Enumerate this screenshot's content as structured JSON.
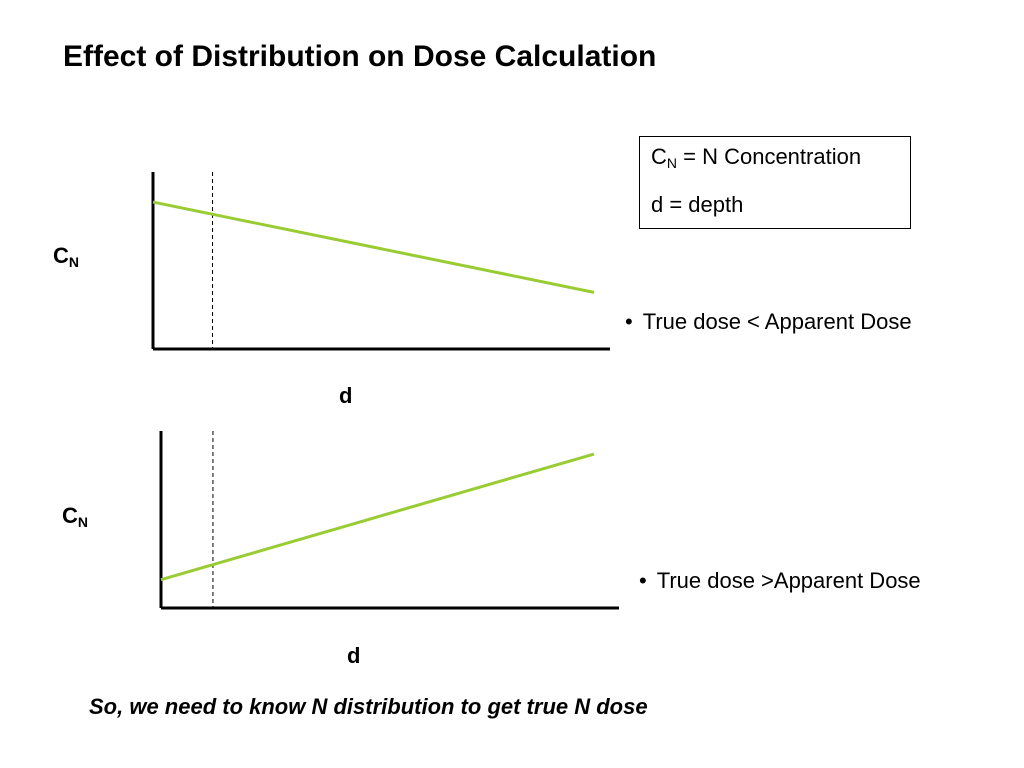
{
  "slide": {
    "title": "Effect of Distribution on Dose Calculation",
    "legend": {
      "cn_main": "C",
      "cn_sub": "N",
      "cn_rest": " = N Concentration",
      "d_line": "d = depth"
    },
    "conclusion": "So, we need to know N distribution to get true N dose"
  },
  "chart_data": [
    {
      "type": "line",
      "xlabel": "d",
      "ylabel_main": "C",
      "ylabel_sub": "N",
      "series": [
        {
          "x": [
            0,
            1
          ],
          "y": [
            0.83,
            0.32
          ]
        }
      ],
      "xlim": [
        0,
        1.04
      ],
      "ylim": [
        0,
        1
      ],
      "marker_x": 0.135,
      "line_color": "#99cc33",
      "bullet": "True dose < Apparent Dose"
    },
    {
      "type": "line",
      "xlabel": "d",
      "ylabel_main": "C",
      "ylabel_sub": "N",
      "series": [
        {
          "x": [
            0,
            1
          ],
          "y": [
            0.16,
            0.87
          ]
        }
      ],
      "xlim": [
        0,
        1.04
      ],
      "ylim": [
        0,
        1
      ],
      "marker_x": 0.12,
      "line_color": "#99cc33",
      "bullet": "True dose >Apparent Dose"
    }
  ]
}
